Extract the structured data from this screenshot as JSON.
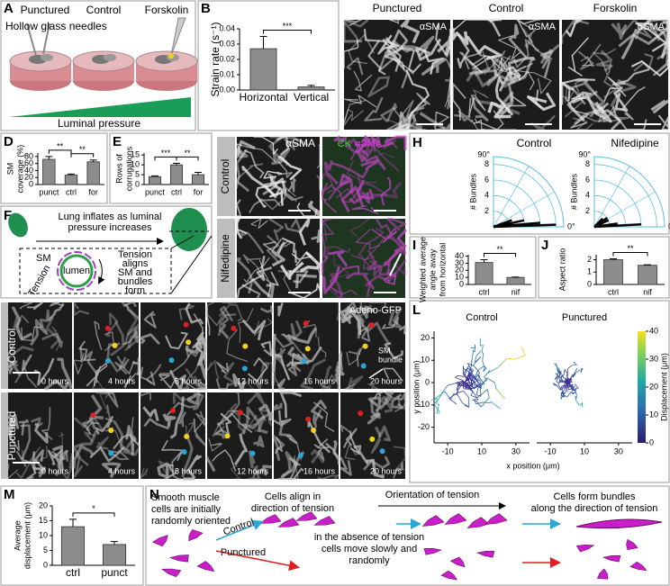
{
  "A": {
    "label": "A",
    "conditions": [
      "Punctured",
      "Control",
      "Forskolin"
    ],
    "needles": "Hollow glass needles",
    "gradient": "Luminal pressure"
  },
  "B": {
    "label": "B",
    "chart": {
      "type": "bar",
      "ylabel": "Strain rate (s⁻¹)",
      "categories": [
        "Horizontal",
        "Vertical"
      ],
      "values": [
        0.027,
        0.002
      ],
      "errors": [
        0.008,
        0.001
      ],
      "ylim": [
        0,
        0.04
      ],
      "yticks": [
        {
          "value": 0,
          "label": "0.00"
        },
        {
          "value": 0.01,
          "label": "0.01"
        },
        {
          "value": 0.02,
          "label": "0.02"
        },
        {
          "value": 0.03,
          "label": "0.03"
        },
        {
          "value": 0.04,
          "label": "0.04"
        }
      ],
      "significance": [
        "***"
      ]
    }
  },
  "C": {
    "label": "C",
    "conditions": [
      "Punctured",
      "Control",
      "Forskolin"
    ],
    "stain": "αSMA"
  },
  "D": {
    "label": "D",
    "chart": {
      "type": "bar",
      "ylabel": [
        "SM",
        "coverage (%)"
      ],
      "categories": [
        "punct",
        "ctrl",
        "for"
      ],
      "values": [
        72,
        27,
        65
      ],
      "errors": [
        8,
        3,
        5
      ],
      "ylim": [
        0,
        90
      ],
      "yticks": [
        0,
        20,
        40,
        60,
        80
      ],
      "significance": [
        "**",
        "**"
      ]
    }
  },
  "E": {
    "label": "E",
    "chart": {
      "type": "bar",
      "ylabel": [
        "Rows of",
        "corrugations"
      ],
      "categories": [
        "punct",
        "ctrl",
        "for"
      ],
      "values": [
        4,
        10,
        5
      ],
      "errors": [
        0.4,
        0.8,
        1.2
      ],
      "ylim": [
        0,
        16
      ],
      "yticks": [
        0,
        5,
        10,
        15
      ],
      "significance": [
        "***",
        "**"
      ]
    }
  },
  "F": {
    "label": "F",
    "caption": [
      "Lung inflates as luminal",
      "pressure increases"
    ],
    "sm": "SM",
    "lumen": "lumen",
    "tension": "Tension",
    "result": [
      "Tension",
      "aligns",
      "SM and",
      "bundles",
      "form"
    ]
  },
  "G": {
    "label": "G",
    "rows": [
      "Control",
      "Nifedipine"
    ],
    "stain": "αSMA",
    "merge": [
      "CK",
      "αSMA"
    ]
  },
  "H": {
    "label": "H",
    "plots": [
      {
        "type": "polar",
        "title": "Control",
        "axis_label": "# Bundles",
        "angle_labels": [
          "90°",
          "0°"
        ],
        "rlim": [
          0,
          9
        ],
        "rticks": [
          2,
          4,
          6,
          8
        ],
        "angles": [
          2,
          5,
          12,
          20
        ],
        "values": [
          8,
          6,
          4,
          2.5
        ]
      },
      {
        "type": "polar",
        "title": "Nifedipine",
        "axis_label": "# Bundles",
        "angle_labels": [
          "90°",
          "0°"
        ],
        "rlim": [
          0,
          9
        ],
        "rticks": [
          2,
          4,
          6,
          8
        ],
        "angles": [
          3,
          8,
          25,
          35,
          45
        ],
        "values": [
          6,
          3,
          2,
          2,
          1.5
        ]
      }
    ]
  },
  "I": {
    "label": "I",
    "chart": {
      "type": "bar",
      "ylabel": [
        "Weighted average",
        "angle away",
        "from horizontal"
      ],
      "categories": [
        "ctrl",
        "nif"
      ],
      "values": [
        31,
        10
      ],
      "errors": [
        4,
        0.5
      ],
      "ylim": [
        0,
        42
      ],
      "yticks": [
        0,
        10,
        20,
        30,
        40
      ],
      "significance": [
        "**"
      ]
    }
  },
  "J": {
    "label": "J",
    "chart": {
      "type": "bar",
      "ylabel": "Aspect ratio",
      "categories": [
        "ctrl",
        "nif"
      ],
      "values": [
        2.0,
        1.55
      ],
      "errors": [
        0.07,
        0.04
      ],
      "ylim": [
        0,
        2.4
      ],
      "yticks": [
        0,
        1,
        2
      ],
      "significance": [
        "**"
      ]
    }
  },
  "K": {
    "label": "K",
    "reporter": "Adeno-GFP",
    "bundle": [
      "SM",
      "bundle"
    ],
    "rows": [
      {
        "label": "Control",
        "times": [
          "0 hours",
          "4 hours",
          "8 hours",
          "12 hours",
          "16 hours",
          "20 hours"
        ]
      },
      {
        "label": "Punctured",
        "times": [
          "0 hours",
          "4 hours",
          "8 hours",
          "12 hours",
          "16 hours",
          "20 hours"
        ]
      }
    ]
  },
  "L": {
    "label": "L",
    "plots": [
      "Control",
      "Punctured"
    ],
    "xlabel": "x position (μm)",
    "ylabel": "y position (μm)",
    "xlim": [
      -18,
      38
    ],
    "ylim": [
      -27,
      23
    ],
    "xticks": [
      -10,
      10,
      30
    ],
    "yticks": [
      -20,
      -10,
      0,
      10,
      20
    ],
    "colorbar": {
      "label": "Displacement (μm)",
      "lim": [
        0,
        40
      ],
      "ticks": [
        0,
        10,
        20,
        30,
        40
      ]
    }
  },
  "M": {
    "label": "M",
    "chart": {
      "type": "bar",
      "ylabel": [
        "Average",
        "displacement (μm)"
      ],
      "categories": [
        "ctrl",
        "punct"
      ],
      "values": [
        13,
        7
      ],
      "errors": [
        2.5,
        1
      ],
      "ylim": [
        0,
        20
      ],
      "yticks": [
        0,
        5,
        10,
        15,
        20
      ],
      "significance": [
        "*"
      ]
    }
  },
  "N": {
    "label": "N",
    "start": [
      "Smooth muscle",
      "cells are initially",
      "randomly oriented"
    ],
    "align": [
      "Cells align in",
      "direction of tension"
    ],
    "orientation": "Orientation of tension",
    "bundles": [
      "Cells form bundles",
      "along the direction of tension"
    ],
    "control": "Control",
    "punctured": "Punctured",
    "random": [
      "in the absence of tension",
      "cells move slowly and",
      "randomly"
    ]
  }
}
